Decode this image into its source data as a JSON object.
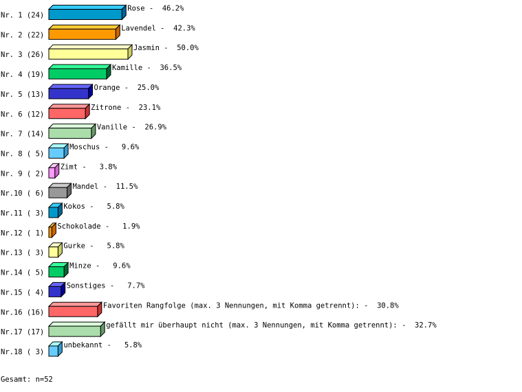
{
  "chart_data": {
    "type": "bar",
    "orientation": "horizontal",
    "style": "3d",
    "total_label": "Gesamt: n=52",
    "xlim": [
      0,
      50
    ],
    "grid": false,
    "categories": [
      "Rose",
      "Lavendel",
      "Jasmin",
      "Kamille",
      "Orange",
      "Zitrone",
      "Vanille",
      "Moschus",
      "Zimt",
      "Mandel",
      "Kokos",
      "Schokolade",
      "Gurke",
      "Minze",
      "Sonstiges",
      "Favoriten Rangfolge (max. 3 Nennungen, mit Komma getrennt):",
      "gefällt mir überhaupt nicht (max. 3 Nennungen, mit Komma getrennt):",
      "unbekannt"
    ],
    "row_labels": [
      "Nr. 1 (24)",
      "Nr. 2 (22)",
      "Nr. 3 (26)",
      "Nr. 4 (19)",
      "Nr. 5 (13)",
      "Nr. 6 (12)",
      "Nr. 7 (14)",
      "Nr. 8 ( 5)",
      "Nr. 9 ( 2)",
      "Nr.10 ( 6)",
      "Nr.11 ( 3)",
      "Nr.12 ( 1)",
      "Nr.13 ( 3)",
      "Nr.14 ( 5)",
      "Nr.15 ( 4)",
      "Nr.16 (16)",
      "Nr.17 (17)",
      "Nr.18 ( 3)"
    ],
    "counts": [
      24,
      22,
      26,
      19,
      13,
      12,
      14,
      5,
      2,
      6,
      3,
      1,
      3,
      5,
      4,
      16,
      17,
      3
    ],
    "values": [
      46.2,
      42.3,
      50.0,
      36.5,
      25.0,
      23.1,
      26.9,
      9.6,
      3.8,
      11.5,
      5.8,
      1.9,
      5.8,
      9.6,
      7.7,
      30.8,
      32.7,
      5.8
    ],
    "value_labels": [
      "Rose -  46.2%",
      "Lavendel -  42.3%",
      "Jasmin -  50.0%",
      "Kamille -  36.5%",
      "Orange -  25.0%",
      "Zitrone -  23.1%",
      "Vanille -  26.9%",
      "Moschus -   9.6%",
      "Zimt -   3.8%",
      "Mandel -  11.5%",
      "Kokos -   5.8%",
      "Schokolade -   1.9%",
      "Gurke -   5.8%",
      "Minze -   9.6%",
      "Sonstiges -   7.7%",
      "Favoriten Rangfolge (max. 3 Nennungen, mit Komma getrennt): -  30.8%",
      "gefällt mir überhaupt nicht (max. 3 Nennungen, mit Komma getrennt): -  32.7%",
      "unbekannt -   5.8%"
    ],
    "palette": [
      {
        "front": "#0099cc",
        "top": "#33ccff",
        "side": "#006699"
      },
      {
        "front": "#ff9900",
        "top": "#ffcc33",
        "side": "#cc6600"
      },
      {
        "front": "#ffff99",
        "top": "#ffffcc",
        "side": "#cccc66"
      },
      {
        "front": "#00cc66",
        "top": "#33ff99",
        "side": "#006633"
      },
      {
        "front": "#3333cc",
        "top": "#6666ff",
        "side": "#000099"
      },
      {
        "front": "#ff6666",
        "top": "#ff9999",
        "side": "#cc3333"
      },
      {
        "front": "#aaddaa",
        "top": "#ddffdd",
        "side": "#669966"
      },
      {
        "front": "#66ccff",
        "top": "#aaffff",
        "side": "#3399cc"
      },
      {
        "front": "#ff99ff",
        "top": "#ffccff",
        "side": "#cc66cc"
      },
      {
        "front": "#999999",
        "top": "#cccccc",
        "side": "#666666"
      }
    ]
  }
}
